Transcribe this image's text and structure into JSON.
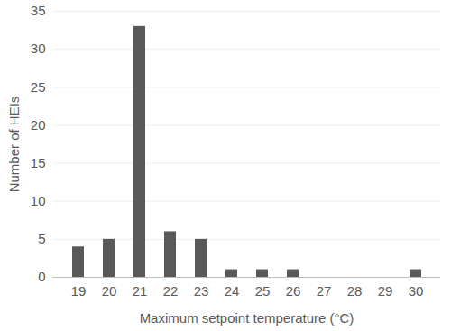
{
  "chart_data": {
    "type": "bar",
    "xlabel": "Maximum setpoint temperature (°C)",
    "ylabel": "Number of HEIs",
    "categories": [
      "19",
      "20",
      "21",
      "22",
      "23",
      "24",
      "25",
      "26",
      "27",
      "28",
      "29",
      "30"
    ],
    "values": [
      4,
      5,
      33,
      6,
      5,
      1,
      1,
      1,
      0,
      0,
      0,
      1
    ],
    "color": "#595959",
    "ylim": [
      0,
      35
    ],
    "yticks": [
      0,
      5,
      10,
      15,
      20,
      25,
      30,
      35
    ],
    "grid": true
  }
}
